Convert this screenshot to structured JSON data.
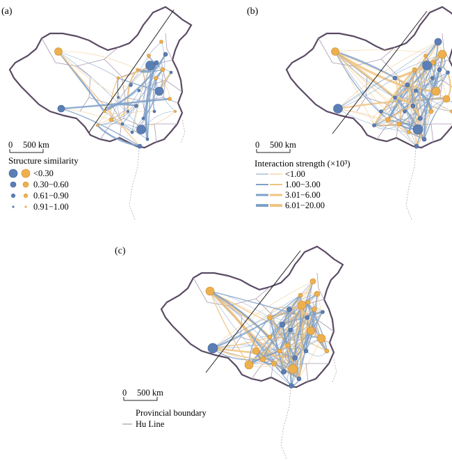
{
  "panels": [
    {
      "label": "(a)",
      "scale": {
        "zero": "0",
        "dist": "500 km"
      }
    },
    {
      "label": "(b)",
      "scale": {
        "zero": "0",
        "dist": "500 km"
      }
    },
    {
      "label": "(c)",
      "scale": {
        "zero": "0",
        "dist": "500 km"
      }
    }
  ],
  "legend_a": {
    "title": "Structure similarity",
    "items": [
      "<0.30",
      "0.30−0.60",
      "0.61−0.90",
      "0.91−1.00"
    ]
  },
  "legend_b": {
    "title": "Interaction strength (×10³)",
    "items": [
      "<1.00",
      "1.00−3.00",
      "3.01−6.00",
      "6.01−20.00"
    ]
  },
  "legend_c": {
    "items": [
      "Provincial boundary",
      "Hu Line"
    ]
  },
  "colors": {
    "blue": "#5b7fb5",
    "orange": "#eeb04f",
    "line_blue": "#7ea0c8",
    "line_orange": "#f0c380",
    "boundary": "#9a8aa3",
    "outline": "#5a4a63"
  }
}
